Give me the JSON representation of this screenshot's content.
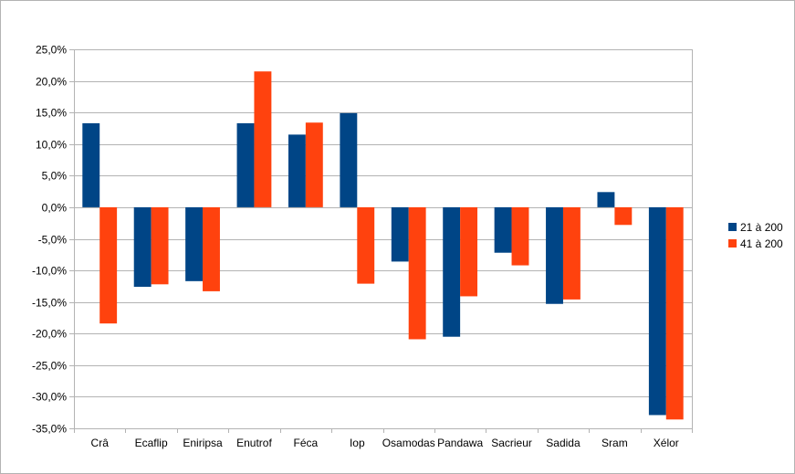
{
  "chart_data": {
    "type": "bar",
    "title": "",
    "xlabel": "",
    "ylabel": "",
    "ylim": [
      -0.35,
      0.25
    ],
    "y_tick_step": 0.05,
    "y_tick_format": "percent-1-decimal-comma",
    "grid": true,
    "legend_position": "right",
    "categories": [
      "Crâ",
      "Ecaflip",
      "Eniripsa",
      "Enutrof",
      "Féca",
      "Iop",
      "Osamodas",
      "Pandawa",
      "Sacrieur",
      "Sadida",
      "Sram",
      "Xélor"
    ],
    "series": [
      {
        "name": "21 à 200",
        "color": "#004586",
        "values": [
          0.133,
          -0.126,
          -0.117,
          0.133,
          0.115,
          0.149,
          -0.086,
          -0.205,
          -0.072,
          -0.153,
          0.024,
          -0.329
        ]
      },
      {
        "name": "41 à 200",
        "color": "#ff420e",
        "values": [
          -0.184,
          -0.122,
          -0.133,
          0.215,
          0.134,
          -0.121,
          -0.209,
          -0.141,
          -0.092,
          -0.146,
          -0.028,
          -0.336
        ]
      }
    ],
    "y_tick_labels": [
      "25,0%",
      "20,0%",
      "15,0%",
      "10,0%",
      "5,0%",
      "0,0%",
      "-5,0%",
      "-10,0%",
      "-15,0%",
      "-20,0%",
      "-25,0%",
      "-30,0%",
      "-35,0%"
    ]
  }
}
